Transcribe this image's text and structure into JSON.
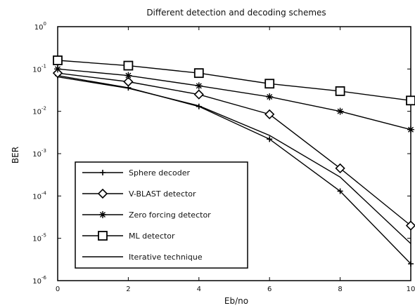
{
  "chart_data": {
    "type": "line",
    "title": "Different detection and decoding schemes",
    "xlabel": "Eb/no",
    "ylabel": "BER",
    "x": [
      0,
      2,
      4,
      6,
      8,
      10
    ],
    "xlim": [
      0,
      10
    ],
    "ylim": [
      1e-06,
      1
    ],
    "yscale": "log",
    "grid": false,
    "legend_position": "lower-left",
    "x_tick_labels": [
      "0",
      "2",
      "4",
      "6",
      "8",
      "10"
    ],
    "y_ticks": [
      {
        "base": "10",
        "exp": "0"
      },
      {
        "base": "10",
        "exp": "-1"
      },
      {
        "base": "10",
        "exp": "-2"
      },
      {
        "base": "10",
        "exp": "-3"
      },
      {
        "base": "10",
        "exp": "-4"
      },
      {
        "base": "10",
        "exp": "-5"
      },
      {
        "base": "10",
        "exp": "-6"
      }
    ],
    "series": [
      {
        "name": "Sphere decoder",
        "marker": "plus",
        "values": [
          0.07,
          0.036,
          0.013,
          0.0022,
          0.00013,
          2.5e-06
        ]
      },
      {
        "name": "V-BLAST detector",
        "marker": "diamond",
        "values": [
          0.08,
          0.05,
          0.025,
          0.0085,
          0.00045,
          2e-05
        ]
      },
      {
        "name": "Zero forcing detector",
        "marker": "star",
        "values": [
          0.1,
          0.07,
          0.04,
          0.022,
          0.01,
          0.0037
        ]
      },
      {
        "name": "ML detector",
        "marker": "square",
        "values": [
          0.16,
          0.12,
          0.08,
          0.045,
          0.03,
          0.018
        ]
      },
      {
        "name": "Iterative technique",
        "marker": "none",
        "values": [
          0.065,
          0.035,
          0.0135,
          0.0027,
          0.00028,
          7.5e-06
        ]
      }
    ]
  }
}
